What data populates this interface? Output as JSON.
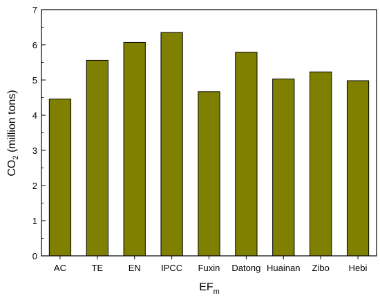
{
  "chart_data": {
    "type": "bar",
    "categories": [
      "AC",
      "TE",
      "EN",
      "IPCC",
      "Fuxin",
      "Datong",
      "Huainan",
      "Zibo",
      "Hebi"
    ],
    "values": [
      4.46,
      5.56,
      6.07,
      6.35,
      4.67,
      5.79,
      5.03,
      5.23,
      4.98
    ],
    "title": "",
    "xlabel": "EF",
    "xlabel_sub": "m",
    "ylabel": "CO",
    "ylabel_sub": "2",
    "ylabel_suffix": " (million tons)",
    "ylim": [
      0,
      7
    ],
    "yticks": [
      "0",
      "1",
      "2",
      "3",
      "4",
      "5",
      "6",
      "7"
    ],
    "grid": false,
    "bar_color": "#808000",
    "bar_edge_color": "#000000"
  }
}
